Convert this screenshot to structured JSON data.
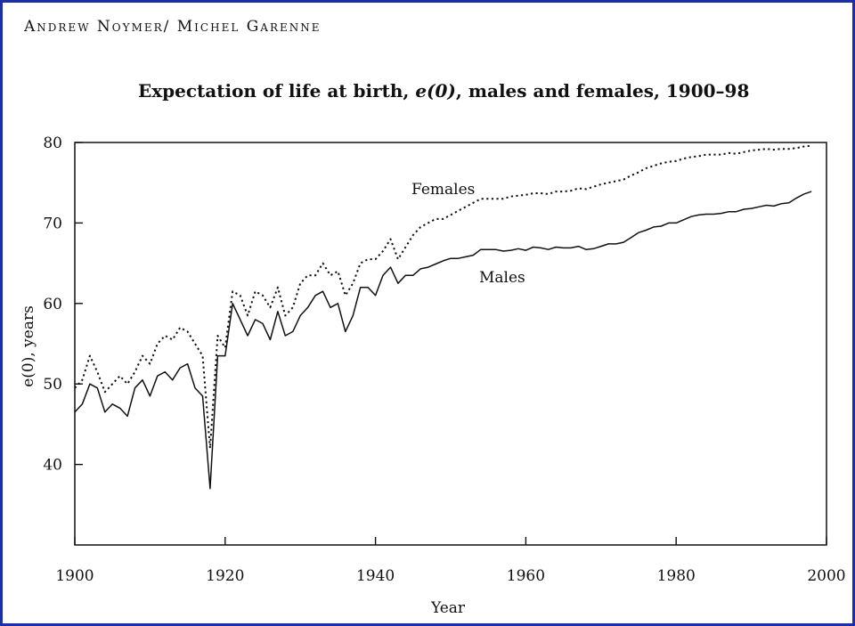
{
  "header": {
    "authors": "Andrew Noymer/ Michel Garenne"
  },
  "chart_data": {
    "type": "line",
    "title_prefix": "Expectation of life at birth, ",
    "title_symbol": "e(0)",
    "title_suffix": ", males and females, 1900–98",
    "title": "Expectation of life at birth, e(0), males and females, 1900–98",
    "xlabel": "Year",
    "ylabel": "e(0), years",
    "xlim": [
      1900,
      2000
    ],
    "ylim": [
      30,
      80
    ],
    "xticks": [
      1900,
      1920,
      1940,
      1960,
      1980,
      2000
    ],
    "yticks": [
      40,
      50,
      60,
      70,
      80
    ],
    "grid": false,
    "legend": "inline labels",
    "series": [
      {
        "name": "Females",
        "style": "dotted",
        "x": [
          1900,
          1901,
          1902,
          1903,
          1904,
          1905,
          1906,
          1907,
          1908,
          1909,
          1910,
          1911,
          1912,
          1913,
          1914,
          1915,
          1916,
          1917,
          1918,
          1919,
          1920,
          1921,
          1922,
          1923,
          1924,
          1925,
          1926,
          1927,
          1928,
          1929,
          1930,
          1931,
          1932,
          1933,
          1934,
          1935,
          1936,
          1937,
          1938,
          1939,
          1940,
          1941,
          1942,
          1943,
          1944,
          1945,
          1946,
          1947,
          1948,
          1949,
          1950,
          1951,
          1952,
          1953,
          1954,
          1955,
          1956,
          1957,
          1958,
          1959,
          1960,
          1961,
          1962,
          1963,
          1964,
          1965,
          1966,
          1967,
          1968,
          1969,
          1970,
          1971,
          1972,
          1973,
          1974,
          1975,
          1976,
          1977,
          1978,
          1979,
          1980,
          1981,
          1982,
          1983,
          1984,
          1985,
          1986,
          1987,
          1988,
          1989,
          1990,
          1991,
          1992,
          1993,
          1994,
          1995,
          1996,
          1997,
          1998
        ],
        "values": [
          49.5,
          50.5,
          53.5,
          51.5,
          49.0,
          50.0,
          51.0,
          50.0,
          51.5,
          53.5,
          52.5,
          55.0,
          56.0,
          55.5,
          57.0,
          56.5,
          55.0,
          53.5,
          42.0,
          56.0,
          54.5,
          61.5,
          61.0,
          58.5,
          61.5,
          61.0,
          59.5,
          62.0,
          58.5,
          59.5,
          62.5,
          63.5,
          63.5,
          65.0,
          63.5,
          64.0,
          61.0,
          62.5,
          65.0,
          65.5,
          65.5,
          66.5,
          68.0,
          65.5,
          67.0,
          68.5,
          69.5,
          70.0,
          70.5,
          70.5,
          71.0,
          71.5,
          72.0,
          72.5,
          73.0,
          73.0,
          73.0,
          73.0,
          73.3,
          73.4,
          73.5,
          73.7,
          73.7,
          73.6,
          73.9,
          73.9,
          74.0,
          74.3,
          74.2,
          74.5,
          74.8,
          75.0,
          75.2,
          75.4,
          75.9,
          76.3,
          76.8,
          77.1,
          77.4,
          77.6,
          77.7,
          78.0,
          78.2,
          78.3,
          78.5,
          78.5,
          78.5,
          78.7,
          78.6,
          78.8,
          79.0,
          79.1,
          79.2,
          79.1,
          79.2,
          79.2,
          79.3,
          79.5,
          79.6
        ]
      },
      {
        "name": "Males",
        "style": "solid",
        "x": [
          1900,
          1901,
          1902,
          1903,
          1904,
          1905,
          1906,
          1907,
          1908,
          1909,
          1910,
          1911,
          1912,
          1913,
          1914,
          1915,
          1916,
          1917,
          1918,
          1919,
          1920,
          1921,
          1922,
          1923,
          1924,
          1925,
          1926,
          1927,
          1928,
          1929,
          1930,
          1931,
          1932,
          1933,
          1934,
          1935,
          1936,
          1937,
          1938,
          1939,
          1940,
          1941,
          1942,
          1943,
          1944,
          1945,
          1946,
          1947,
          1948,
          1949,
          1950,
          1951,
          1952,
          1953,
          1954,
          1955,
          1956,
          1957,
          1958,
          1959,
          1960,
          1961,
          1962,
          1963,
          1964,
          1965,
          1966,
          1967,
          1968,
          1969,
          1970,
          1971,
          1972,
          1973,
          1974,
          1975,
          1976,
          1977,
          1978,
          1979,
          1980,
          1981,
          1982,
          1983,
          1984,
          1985,
          1986,
          1987,
          1988,
          1989,
          1990,
          1991,
          1992,
          1993,
          1994,
          1995,
          1996,
          1997,
          1998
        ],
        "values": [
          46.5,
          47.5,
          50.0,
          49.5,
          46.5,
          47.5,
          47.0,
          46.0,
          49.5,
          50.5,
          48.5,
          51.0,
          51.5,
          50.5,
          52.0,
          52.5,
          49.5,
          48.5,
          37.0,
          53.5,
          53.5,
          60.0,
          58.0,
          56.0,
          58.0,
          57.5,
          55.5,
          59.0,
          56.0,
          56.5,
          58.5,
          59.5,
          61.0,
          61.5,
          59.5,
          60.0,
          56.5,
          58.5,
          62.0,
          62.0,
          61.0,
          63.5,
          64.5,
          62.5,
          63.5,
          63.5,
          64.3,
          64.5,
          64.9,
          65.3,
          65.6,
          65.6,
          65.8,
          66.0,
          66.7,
          66.7,
          66.7,
          66.5,
          66.6,
          66.8,
          66.6,
          67.0,
          66.9,
          66.7,
          67.0,
          66.9,
          66.9,
          67.1,
          66.7,
          66.8,
          67.1,
          67.4,
          67.4,
          67.6,
          68.2,
          68.8,
          69.1,
          69.5,
          69.6,
          70.0,
          70.0,
          70.4,
          70.8,
          71.0,
          71.1,
          71.1,
          71.2,
          71.4,
          71.4,
          71.7,
          71.8,
          72.0,
          72.2,
          72.1,
          72.4,
          72.5,
          73.1,
          73.6,
          73.9
        ]
      }
    ]
  }
}
